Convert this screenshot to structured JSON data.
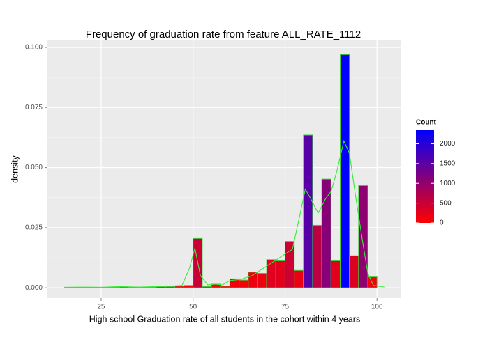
{
  "chart_data": {
    "type": "histogram",
    "title": "Frequency of graduation rate from feature ALL_RATE_1112",
    "x_label": "High school Graduation rate of all students in the cohort within 4 years",
    "y_label": "density",
    "bins": [
      15,
      17.5,
      20,
      22.5,
      25,
      27.5,
      30,
      32.5,
      35,
      37.5,
      40,
      42.5,
      45,
      47.5,
      50,
      52.5,
      55,
      57.5,
      60,
      62.5,
      65,
      67.5,
      70,
      72.5,
      75,
      77.5,
      80,
      82.5,
      85,
      87.5,
      90,
      92.5,
      95,
      97.5,
      100
    ],
    "values": [
      0.0002,
      0.0002,
      0.0002,
      0.0002,
      0.0002,
      0.0002,
      0.0004,
      0.0003,
      0.0002,
      0.0002,
      0.0005,
      0.0005,
      0.0007,
      0.001,
      0.0205,
      0.0005,
      0.0015,
      0.0007,
      0.0037,
      0.0032,
      0.0065,
      0.006,
      0.0117,
      0.0112,
      0.0193,
      0.0072,
      0.0635,
      0.026,
      0.0452,
      0.0112,
      0.097,
      0.0133,
      0.0425,
      0.0045
    ],
    "outline_color": "#3fcc3f",
    "density_curve": {
      "color": "#33ee33",
      "x": [
        15,
        20,
        25,
        30,
        35,
        40,
        45,
        47,
        49,
        50.5,
        52,
        54,
        56,
        58,
        60,
        63,
        66,
        69,
        72,
        75,
        77,
        79,
        80.5,
        82,
        84,
        86,
        87.5,
        89,
        91,
        92.5,
        94,
        96,
        97.5,
        99,
        102
      ],
      "values": [
        0.0002,
        0.0003,
        0.0002,
        0.0005,
        0.0003,
        0.0005,
        0.0008,
        0.001,
        0.008,
        0.0165,
        0.005,
        0.0012,
        0.0015,
        0.0012,
        0.003,
        0.0035,
        0.005,
        0.008,
        0.011,
        0.014,
        0.016,
        0.03,
        0.041,
        0.037,
        0.031,
        0.037,
        0.04,
        0.048,
        0.061,
        0.056,
        0.04,
        0.02,
        0.006,
        0.001,
        0.0003
      ]
    },
    "xlim": [
      10.4,
      106.6
    ],
    "ylim": [
      -0.0043,
      0.1029
    ],
    "xticks": [
      25,
      50,
      75,
      100
    ],
    "yticks": [
      {
        "value": 0,
        "label": "0.000"
      },
      {
        "value": 0.025,
        "label": "0.025"
      },
      {
        "value": 0.05,
        "label": "0.050"
      },
      {
        "value": 0.075,
        "label": "0.075"
      },
      {
        "value": 0.1,
        "label": "0.100"
      }
    ],
    "grid": true,
    "colorbar": {
      "title": "Count",
      "lim": [
        0,
        2360
      ],
      "ticks": [
        0,
        500,
        1000,
        1500,
        2000
      ],
      "low": "#ff0000",
      "high": "#0000ff"
    }
  }
}
